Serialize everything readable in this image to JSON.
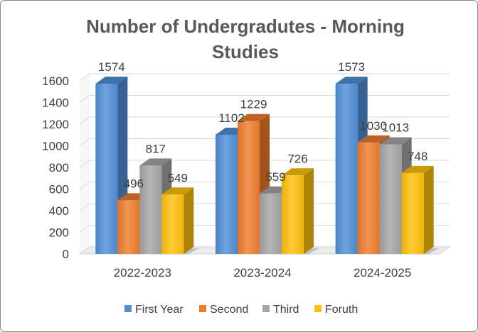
{
  "chart_data": {
    "type": "bar",
    "title_lines": [
      "Number of Undergradutes - Morning",
      "Studies"
    ],
    "categories": [
      "2022-2023",
      "2023-2024",
      "2024-2025"
    ],
    "series": [
      {
        "name": "First Year",
        "values": [
          1574,
          1102,
          1573
        ],
        "color": "#4F8FD6"
      },
      {
        "name": "Second",
        "values": [
          496,
          1229,
          1030
        ],
        "color": "#EE7C2E"
      },
      {
        "name": "Third",
        "values": [
          817,
          559,
          1013
        ],
        "color": "#A5A5A5"
      },
      {
        "name": "Foruth",
        "values": [
          549,
          726,
          748
        ],
        "color": "#FEC00C"
      }
    ],
    "ylim": [
      0,
      1600
    ],
    "yticks": [
      0,
      200,
      400,
      600,
      800,
      1000,
      1200,
      1400,
      1600
    ],
    "grid": true,
    "legend_position": "bottom",
    "style": "3d-clustered-column"
  }
}
